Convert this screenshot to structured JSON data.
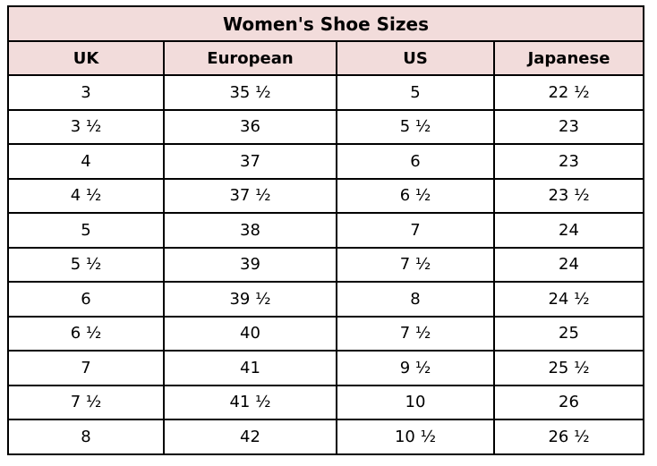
{
  "title": "Women's Shoe Sizes",
  "colors": {
    "header_background": "#f2dcdb",
    "row_background": "#ffffff",
    "border": "#000000",
    "text": "#000000",
    "page_background": "#ffffff"
  },
  "chart_data": {
    "type": "table",
    "title": "Women's Shoe Sizes",
    "columns": [
      "UK",
      "European",
      "US",
      "Japanese"
    ],
    "rows": [
      [
        "3",
        "35 ½",
        "5",
        "22 ½"
      ],
      [
        "3 ½",
        "36",
        "5 ½",
        "23"
      ],
      [
        "4",
        "37",
        "6",
        "23"
      ],
      [
        "4 ½",
        "37 ½",
        "6 ½",
        "23 ½"
      ],
      [
        "5",
        "38",
        "7",
        "24"
      ],
      [
        "5 ½",
        "39",
        "7 ½",
        "24"
      ],
      [
        "6",
        "39 ½",
        "8",
        "24 ½"
      ],
      [
        "6 ½",
        "40",
        "7 ½",
        "25"
      ],
      [
        "7",
        "41",
        "9 ½",
        "25 ½"
      ],
      [
        "7 ½",
        "41 ½",
        "10",
        "26"
      ],
      [
        "8",
        "42",
        "10 ½",
        "26 ½"
      ]
    ],
    "layout": {
      "grid": true,
      "title_position": "top-merged-row",
      "column_alignment": "center"
    }
  }
}
